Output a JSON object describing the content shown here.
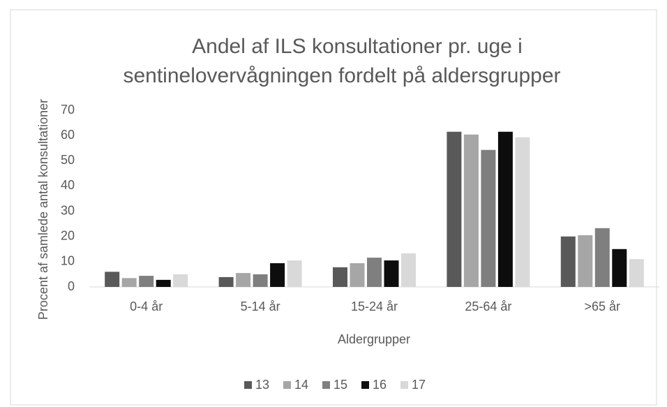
{
  "chart_data": {
    "type": "bar",
    "title": [
      "Andel af ILS konsultationer pr. uge i",
      "sentinelovervågningen fordelt på aldersgrupper"
    ],
    "x_label": "Aldergrupper",
    "y_label": "Procent af samlede antal konsultationer",
    "categories": [
      "0-4 år",
      "5-14 år",
      "15-24 år",
      "25-64 år",
      ">65 år"
    ],
    "series": [
      {
        "name": "13",
        "color": "#595959",
        "values": [
          6,
          3.9,
          7.8,
          61.5,
          20
        ]
      },
      {
        "name": "14",
        "color": "#a6a6a6",
        "values": [
          3.5,
          5.5,
          9.4,
          60.4,
          20.5
        ]
      },
      {
        "name": "15",
        "color": "#7f7f7f",
        "values": [
          4.4,
          5,
          11.6,
          54.3,
          23.3
        ]
      },
      {
        "name": "16",
        "color": "#0d0d0d",
        "values": [
          2.8,
          9.4,
          10.5,
          61.5,
          15
        ]
      },
      {
        "name": "17",
        "color": "#d9d9d9",
        "values": [
          5,
          10.5,
          13.3,
          59.3,
          11
        ]
      }
    ],
    "ylim": [
      0,
      70
    ],
    "yticks": [
      0,
      10,
      20,
      30,
      40,
      50,
      60,
      70
    ],
    "grid": false,
    "legend": "bottom"
  }
}
